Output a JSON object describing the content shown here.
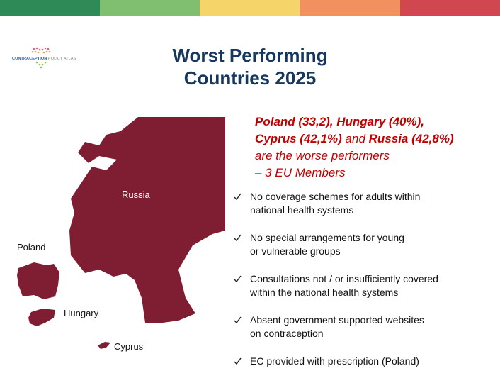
{
  "logo": {
    "brand": "CONTRACEPTION",
    "tagline": "POLICY ATLAS"
  },
  "title": {
    "lines": [
      "Worst Performing",
      "Countries 2025"
    ]
  },
  "highlight": {
    "lines": [
      [
        {
          "text": "Poland (33,2), Hungary (40%),",
          "bold": true
        }
      ],
      [
        {
          "text": "Cyprus (42,1%)",
          "bold": true
        },
        {
          "text": " and ",
          "bold": false
        },
        {
          "text": "Russia (42,8%)",
          "bold": true
        }
      ],
      [
        {
          "text": "are the worse performers",
          "bold": false
        }
      ],
      [
        {
          "text": "– 3 EU Members",
          "bold": false
        }
      ]
    ]
  },
  "map": {
    "labels": [
      "Russia",
      "Poland",
      "Hungary",
      "Cyprus"
    ]
  },
  "bullets": [
    [
      "No coverage schemes for adults within",
      "national health systems"
    ],
    [
      "No special arrangements for young",
      "or vulnerable groups"
    ],
    [
      "Consultations not / or insufficiently covered",
      "within the national health systems"
    ],
    [
      "Absent government supported websites",
      "on contraception"
    ],
    [
      "EC provided with prescription (Poland)"
    ]
  ]
}
